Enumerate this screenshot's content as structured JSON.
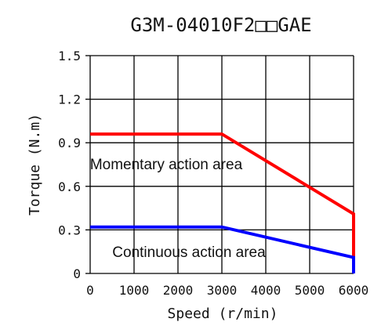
{
  "chart_data": {
    "type": "line",
    "title": "G3M-04010F2□□GAE",
    "xlabel": "Speed (r/min)",
    "ylabel": "Torque (N.m)",
    "xlim": [
      0,
      6000
    ],
    "ylim": [
      0,
      1.5
    ],
    "x_ticks": [
      0,
      1000,
      2000,
      3000,
      4000,
      5000,
      6000
    ],
    "x_tick_labels": [
      "0",
      "1000",
      "2000",
      "3000",
      "4000",
      "5000",
      "6000"
    ],
    "y_ticks": [
      0,
      0.3,
      0.6,
      0.9,
      1.2,
      1.5
    ],
    "y_tick_labels": [
      "0",
      "0.3",
      "0.6",
      "0.9",
      "1.2",
      "1.5"
    ],
    "grid": true,
    "series": [
      {
        "color": "#ff0000",
        "points": [
          [
            0,
            0.96
          ],
          [
            3000,
            0.96
          ],
          [
            6000,
            0.41
          ],
          [
            6000,
            0
          ]
        ]
      },
      {
        "color": "#0000ff",
        "points": [
          [
            0,
            0.32
          ],
          [
            3000,
            0.32
          ],
          [
            6000,
            0.11
          ],
          [
            6000,
            0
          ]
        ]
      }
    ],
    "annotations": [
      "Momentary action area",
      "Continuous action area"
    ]
  }
}
